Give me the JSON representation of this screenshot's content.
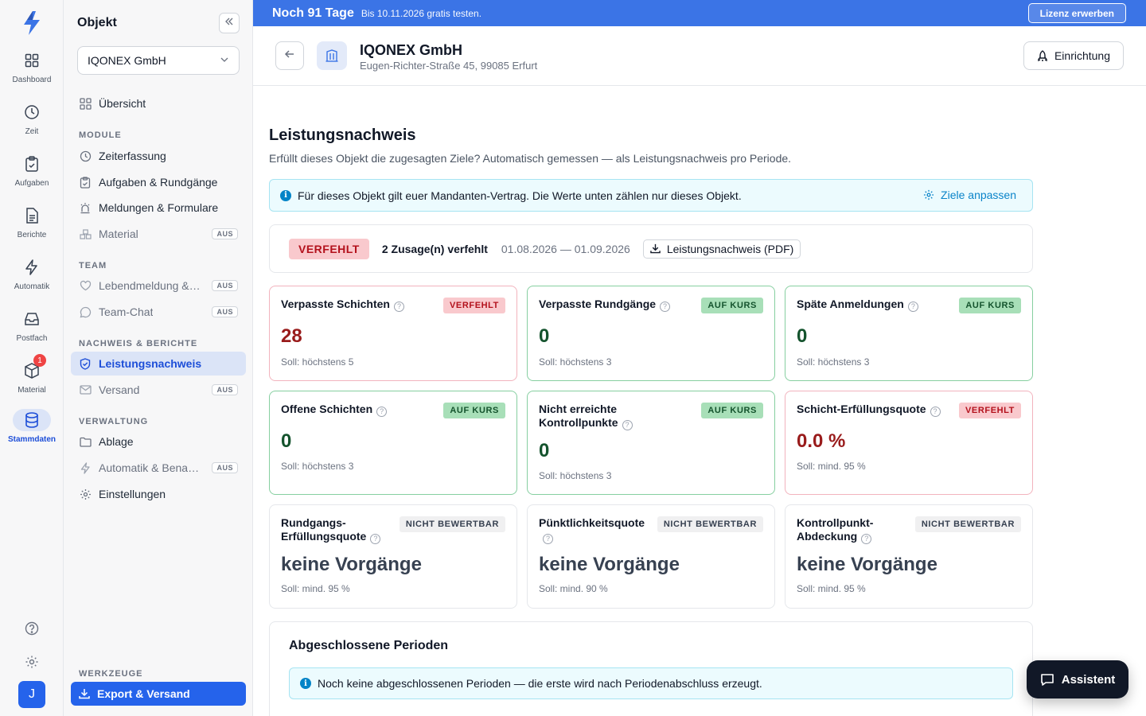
{
  "rail": {
    "items": [
      {
        "label": "Dashboard",
        "icon": "grid-icon"
      },
      {
        "label": "Zeit",
        "icon": "clock-icon"
      },
      {
        "label": "Aufgaben",
        "icon": "clipboard-icon"
      },
      {
        "label": "Berichte",
        "icon": "document-icon"
      },
      {
        "label": "Automatik",
        "icon": "lightning-icon"
      },
      {
        "label": "Postfach",
        "icon": "inbox-icon"
      },
      {
        "label": "Material",
        "icon": "box-icon",
        "badge": "1"
      },
      {
        "label": "Stammdaten",
        "icon": "database-icon"
      }
    ],
    "avatar_initial": "J"
  },
  "sidebar": {
    "title": "Objekt",
    "object_select": "IQONEX GmbH",
    "overview": "Übersicht",
    "sections": {
      "module": "MODULE",
      "team": "TEAM",
      "nachweis": "NACHWEIS & BERICHTE",
      "verwaltung": "VERWALTUNG",
      "werkzeuge": "WERKZEUGE"
    },
    "module_items": [
      "Zeiterfassung",
      "Aufgaben & Rundgänge",
      "Meldungen & Formulare",
      "Material"
    ],
    "team_items": [
      "Lebendmeldung & …",
      "Team-Chat"
    ],
    "nachweis_items": [
      "Leistungsnachweis",
      "Versand"
    ],
    "verwaltung_items": [
      "Ablage",
      "Automatik & Benac…",
      "Einstellungen"
    ],
    "off_label": "AUS",
    "export_button": "Export & Versand"
  },
  "banner": {
    "days": "Noch 91 Tage",
    "subtitle": "Bis 10.11.2026 gratis testen.",
    "license_button": "Lizenz erwerben"
  },
  "header": {
    "name": "IQONEX GmbH",
    "address": "Eugen-Richter-Straße 45, 99085 Erfurt",
    "setup_button": "Einrichtung"
  },
  "main": {
    "title": "Leistungsnachweis",
    "subtitle": "Erfüllt dieses Objekt die zugesagten Ziele? Automatisch gemessen — als Leistungsnachweis pro Periode.",
    "info": "Für dieses Objekt gilt euer Mandanten-Vertrag. Die Werte unten zählen nur dieses Objekt.",
    "adjust_link": "Ziele anpassen",
    "status": {
      "pill": "VERFEHLT",
      "missed": "2 Zusage(n) verfehlt",
      "range": "01.08.2026 — 01.09.2026",
      "pdf_button": "Leistungsnachweis (PDF)"
    },
    "cards": [
      {
        "title": "Verpasste Schichten",
        "badge": "VERFEHLT",
        "value": "28",
        "target": "Soll: höchstens 5"
      },
      {
        "title": "Verpasste Rundgänge",
        "badge": "AUF KURS",
        "value": "0",
        "target": "Soll: höchstens 3"
      },
      {
        "title": "Späte Anmeldungen",
        "badge": "AUF KURS",
        "value": "0",
        "target": "Soll: höchstens 3"
      },
      {
        "title": "Offene Schichten",
        "badge": "AUF KURS",
        "value": "0",
        "target": "Soll: höchstens 3"
      },
      {
        "title1": "Nicht erreichte",
        "title2": "Kontrollpunkte",
        "badge": "AUF KURS",
        "value": "0",
        "target": "Soll: höchstens 3"
      },
      {
        "title": "Schicht-Erfüllungsquote",
        "badge": "VERFEHLT",
        "value": "0.0 %",
        "target": "Soll: mind. 95 %"
      },
      {
        "title1": "Rundgangs-",
        "title2": "Erfüllungsquote",
        "badge": "NICHT BEWERTBAR",
        "value": "keine Vorgänge",
        "target": "Soll: mind. 95 %"
      },
      {
        "title": "Pünktlichkeitsquote",
        "badge": "NICHT BEWERTBAR",
        "value": "keine Vorgänge",
        "target": "Soll: mind. 90 %"
      },
      {
        "title1": "Kontrollpunkt-",
        "title2": "Abdeckung",
        "badge": "NICHT BEWERTBAR",
        "value": "keine Vorgänge",
        "target": "Soll: mind. 95 %"
      }
    ],
    "periods": {
      "title": "Abgeschlossene Perioden",
      "info": "Noch keine abgeschlossenen Perioden — die erste wird nach Periodenabschluss erzeugt."
    }
  },
  "assistant_button": "Assistent",
  "colors": {
    "brand": "#2563eb",
    "banner": "#3b74e6",
    "ok": "#14532d",
    "bad": "#991b1b"
  }
}
